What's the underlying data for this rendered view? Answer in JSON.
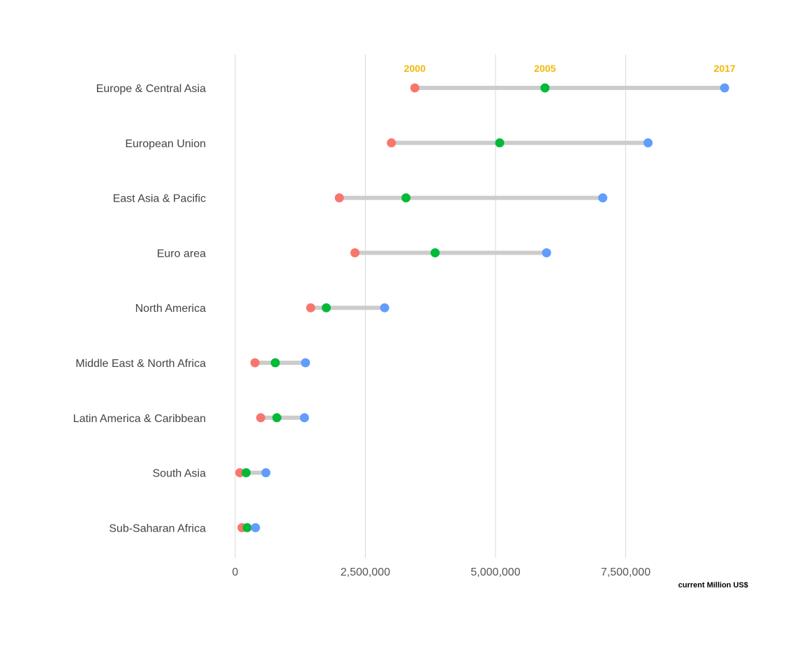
{
  "chart_data": {
    "type": "dumbbell",
    "title": "",
    "xlabel": "current Million US$",
    "ylabel": "",
    "xlim": [
      0,
      10000000
    ],
    "x_ticks": [
      0,
      2500000,
      5000000,
      7500000
    ],
    "x_tick_labels": [
      "0",
      "2,500,000",
      "5,000,000",
      "7,500,000"
    ],
    "grid": "vertical",
    "categories": [
      "Europe & Central Asia",
      "European Union",
      "East Asia & Pacific",
      "Euro area",
      "North America",
      "Middle East & North Africa",
      "Latin America & Caribbean",
      "South Asia",
      "Sub-Saharan Africa"
    ],
    "series": [
      {
        "name": "2000",
        "color": "#f8766d",
        "values": [
          3450000,
          3000000,
          2000000,
          2300000,
          1450000,
          380000,
          490000,
          90000,
          130000
        ]
      },
      {
        "name": "2005",
        "color": "#00ba38",
        "values": [
          5950000,
          5080000,
          3280000,
          3840000,
          1750000,
          770000,
          800000,
          210000,
          230000
        ]
      },
      {
        "name": "2017",
        "color": "#619cff",
        "values": [
          9400000,
          7930000,
          7060000,
          5980000,
          2870000,
          1350000,
          1330000,
          590000,
          390000
        ]
      }
    ],
    "connector_color": "#cccccc",
    "legend": "year labels above top row",
    "legend_color": "#f2b807"
  }
}
